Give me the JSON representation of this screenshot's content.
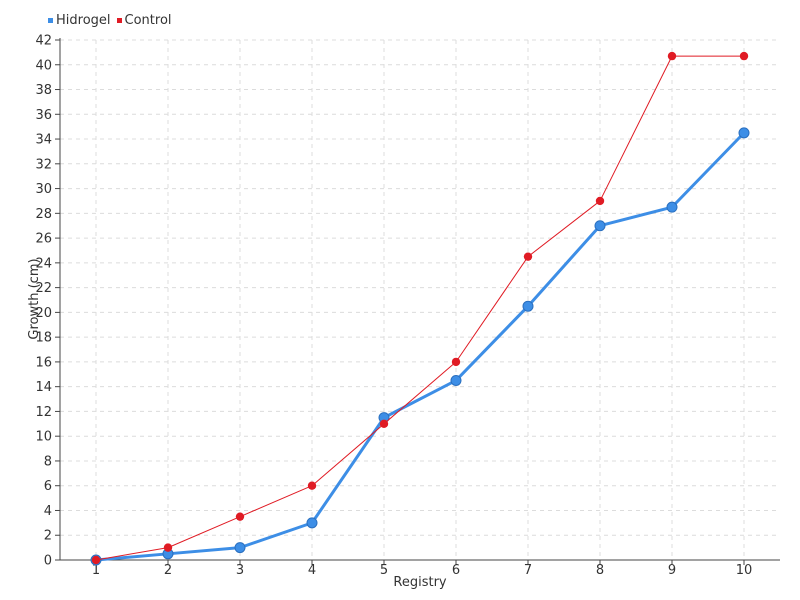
{
  "chart_data": {
    "type": "line",
    "title": "",
    "xlabel": "Registry",
    "ylabel": "Growth (cm)",
    "categories": [
      "1",
      "2",
      "3",
      "4",
      "5",
      "6",
      "7",
      "8",
      "9",
      "10"
    ],
    "ylim": [
      0,
      42
    ],
    "ytick_step": 2,
    "grid": true,
    "legend_position": "top-left",
    "series": [
      {
        "name": "Hidrogel",
        "color": "#3d8ee6",
        "values": [
          0,
          0.5,
          1,
          3,
          11.5,
          14.5,
          20.5,
          27,
          28.5,
          34.5
        ]
      },
      {
        "name": "Control",
        "color": "#e01b24",
        "values": [
          0,
          1,
          3.5,
          6,
          11,
          16,
          24.5,
          29,
          40.7,
          40.7
        ]
      }
    ]
  }
}
